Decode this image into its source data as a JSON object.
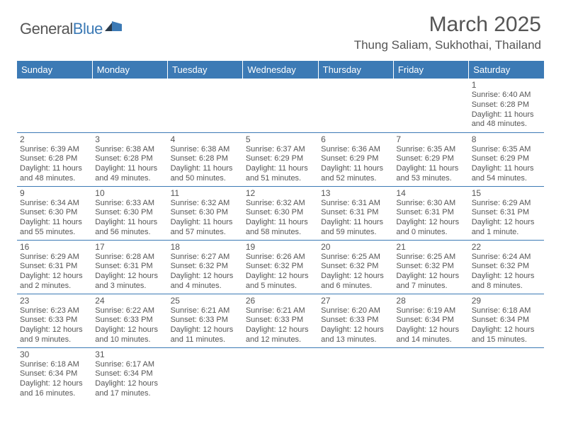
{
  "logo": {
    "word1": "General",
    "word2": "Blue"
  },
  "title": "March 2025",
  "location": "Thung Saliam, Sukhothai, Thailand",
  "colors": {
    "header_bg": "#3c7ab5",
    "header_text": "#ffffff",
    "body_text": "#555555",
    "rule": "#3c7ab5",
    "page_bg": "#ffffff",
    "logo_blue": "#3c7ab5",
    "logo_dark": "#2a3a4a"
  },
  "weekdays": [
    "Sunday",
    "Monday",
    "Tuesday",
    "Wednesday",
    "Thursday",
    "Friday",
    "Saturday"
  ],
  "weeks": [
    [
      null,
      null,
      null,
      null,
      null,
      null,
      {
        "n": "1",
        "sunrise": "Sunrise: 6:40 AM",
        "sunset": "Sunset: 6:28 PM",
        "day1": "Daylight: 11 hours",
        "day2": "and 48 minutes."
      }
    ],
    [
      {
        "n": "2",
        "sunrise": "Sunrise: 6:39 AM",
        "sunset": "Sunset: 6:28 PM",
        "day1": "Daylight: 11 hours",
        "day2": "and 48 minutes."
      },
      {
        "n": "3",
        "sunrise": "Sunrise: 6:38 AM",
        "sunset": "Sunset: 6:28 PM",
        "day1": "Daylight: 11 hours",
        "day2": "and 49 minutes."
      },
      {
        "n": "4",
        "sunrise": "Sunrise: 6:38 AM",
        "sunset": "Sunset: 6:28 PM",
        "day1": "Daylight: 11 hours",
        "day2": "and 50 minutes."
      },
      {
        "n": "5",
        "sunrise": "Sunrise: 6:37 AM",
        "sunset": "Sunset: 6:29 PM",
        "day1": "Daylight: 11 hours",
        "day2": "and 51 minutes."
      },
      {
        "n": "6",
        "sunrise": "Sunrise: 6:36 AM",
        "sunset": "Sunset: 6:29 PM",
        "day1": "Daylight: 11 hours",
        "day2": "and 52 minutes."
      },
      {
        "n": "7",
        "sunrise": "Sunrise: 6:35 AM",
        "sunset": "Sunset: 6:29 PM",
        "day1": "Daylight: 11 hours",
        "day2": "and 53 minutes."
      },
      {
        "n": "8",
        "sunrise": "Sunrise: 6:35 AM",
        "sunset": "Sunset: 6:29 PM",
        "day1": "Daylight: 11 hours",
        "day2": "and 54 minutes."
      }
    ],
    [
      {
        "n": "9",
        "sunrise": "Sunrise: 6:34 AM",
        "sunset": "Sunset: 6:30 PM",
        "day1": "Daylight: 11 hours",
        "day2": "and 55 minutes."
      },
      {
        "n": "10",
        "sunrise": "Sunrise: 6:33 AM",
        "sunset": "Sunset: 6:30 PM",
        "day1": "Daylight: 11 hours",
        "day2": "and 56 minutes."
      },
      {
        "n": "11",
        "sunrise": "Sunrise: 6:32 AM",
        "sunset": "Sunset: 6:30 PM",
        "day1": "Daylight: 11 hours",
        "day2": "and 57 minutes."
      },
      {
        "n": "12",
        "sunrise": "Sunrise: 6:32 AM",
        "sunset": "Sunset: 6:30 PM",
        "day1": "Daylight: 11 hours",
        "day2": "and 58 minutes."
      },
      {
        "n": "13",
        "sunrise": "Sunrise: 6:31 AM",
        "sunset": "Sunset: 6:31 PM",
        "day1": "Daylight: 11 hours",
        "day2": "and 59 minutes."
      },
      {
        "n": "14",
        "sunrise": "Sunrise: 6:30 AM",
        "sunset": "Sunset: 6:31 PM",
        "day1": "Daylight: 12 hours",
        "day2": "and 0 minutes."
      },
      {
        "n": "15",
        "sunrise": "Sunrise: 6:29 AM",
        "sunset": "Sunset: 6:31 PM",
        "day1": "Daylight: 12 hours",
        "day2": "and 1 minute."
      }
    ],
    [
      {
        "n": "16",
        "sunrise": "Sunrise: 6:29 AM",
        "sunset": "Sunset: 6:31 PM",
        "day1": "Daylight: 12 hours",
        "day2": "and 2 minutes."
      },
      {
        "n": "17",
        "sunrise": "Sunrise: 6:28 AM",
        "sunset": "Sunset: 6:31 PM",
        "day1": "Daylight: 12 hours",
        "day2": "and 3 minutes."
      },
      {
        "n": "18",
        "sunrise": "Sunrise: 6:27 AM",
        "sunset": "Sunset: 6:32 PM",
        "day1": "Daylight: 12 hours",
        "day2": "and 4 minutes."
      },
      {
        "n": "19",
        "sunrise": "Sunrise: 6:26 AM",
        "sunset": "Sunset: 6:32 PM",
        "day1": "Daylight: 12 hours",
        "day2": "and 5 minutes."
      },
      {
        "n": "20",
        "sunrise": "Sunrise: 6:25 AM",
        "sunset": "Sunset: 6:32 PM",
        "day1": "Daylight: 12 hours",
        "day2": "and 6 minutes."
      },
      {
        "n": "21",
        "sunrise": "Sunrise: 6:25 AM",
        "sunset": "Sunset: 6:32 PM",
        "day1": "Daylight: 12 hours",
        "day2": "and 7 minutes."
      },
      {
        "n": "22",
        "sunrise": "Sunrise: 6:24 AM",
        "sunset": "Sunset: 6:32 PM",
        "day1": "Daylight: 12 hours",
        "day2": "and 8 minutes."
      }
    ],
    [
      {
        "n": "23",
        "sunrise": "Sunrise: 6:23 AM",
        "sunset": "Sunset: 6:33 PM",
        "day1": "Daylight: 12 hours",
        "day2": "and 9 minutes."
      },
      {
        "n": "24",
        "sunrise": "Sunrise: 6:22 AM",
        "sunset": "Sunset: 6:33 PM",
        "day1": "Daylight: 12 hours",
        "day2": "and 10 minutes."
      },
      {
        "n": "25",
        "sunrise": "Sunrise: 6:21 AM",
        "sunset": "Sunset: 6:33 PM",
        "day1": "Daylight: 12 hours",
        "day2": "and 11 minutes."
      },
      {
        "n": "26",
        "sunrise": "Sunrise: 6:21 AM",
        "sunset": "Sunset: 6:33 PM",
        "day1": "Daylight: 12 hours",
        "day2": "and 12 minutes."
      },
      {
        "n": "27",
        "sunrise": "Sunrise: 6:20 AM",
        "sunset": "Sunset: 6:33 PM",
        "day1": "Daylight: 12 hours",
        "day2": "and 13 minutes."
      },
      {
        "n": "28",
        "sunrise": "Sunrise: 6:19 AM",
        "sunset": "Sunset: 6:34 PM",
        "day1": "Daylight: 12 hours",
        "day2": "and 14 minutes."
      },
      {
        "n": "29",
        "sunrise": "Sunrise: 6:18 AM",
        "sunset": "Sunset: 6:34 PM",
        "day1": "Daylight: 12 hours",
        "day2": "and 15 minutes."
      }
    ],
    [
      {
        "n": "30",
        "sunrise": "Sunrise: 6:18 AM",
        "sunset": "Sunset: 6:34 PM",
        "day1": "Daylight: 12 hours",
        "day2": "and 16 minutes."
      },
      {
        "n": "31",
        "sunrise": "Sunrise: 6:17 AM",
        "sunset": "Sunset: 6:34 PM",
        "day1": "Daylight: 12 hours",
        "day2": "and 17 minutes."
      },
      null,
      null,
      null,
      null,
      null
    ]
  ]
}
